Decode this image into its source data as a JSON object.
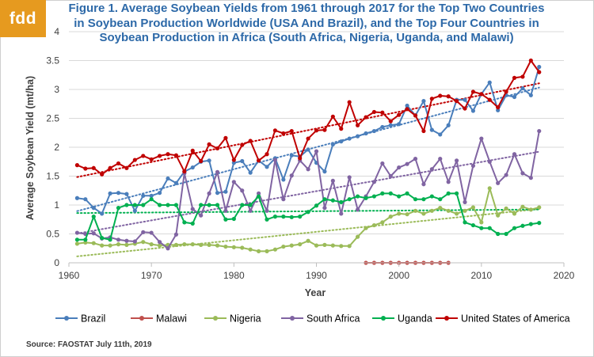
{
  "logo": {
    "text": "fdd"
  },
  "title": "Figure 1.  Average Soybean Yields from 1961 through 2017 for the Top Two Countries in Soybean Production Worldwide (USA And Brazil), and the Top Four Countries in Soybean Production in Africa (South Africa, Nigeria, Uganda, and Malawi)",
  "source": "Source: FAOSTAT July 11th, 2019",
  "chart_data": {
    "type": "line",
    "title": "Figure 1.  Average Soybean Yields from 1961 through 2017 for the Top Two Countries in Soybean Production Worldwide (USA And Brazil), and the Top Four Countries in Soybean Production in Africa (South Africa, Nigeria, Uganda, and Malawi)",
    "xlabel": "Year",
    "ylabel": "Average Soybean Yield (mt/ha)",
    "xlim": [
      1960,
      2020
    ],
    "ylim": [
      0,
      4
    ],
    "xticks": [
      "1960",
      "1970",
      "1980",
      "1990",
      "2000",
      "2010",
      "2020"
    ],
    "yticks": [
      "0",
      "0.5",
      "1",
      "1.5",
      "2",
      "2.5",
      "3",
      "3.5",
      "4"
    ],
    "grid": "horizontal",
    "legend_position": "bottom",
    "trendlines": "dotted linear trendline per series",
    "series": [
      {
        "name": "Brazil",
        "color": "#4a7ebb",
        "start_year": 1961,
        "values": [
          1.12,
          1.1,
          0.95,
          0.85,
          1.2,
          1.21,
          1.19,
          0.9,
          1.16,
          1.16,
          1.21,
          1.46,
          1.38,
          1.58,
          1.65,
          1.75,
          1.77,
          1.21,
          1.23,
          1.73,
          1.76,
          1.56,
          1.77,
          1.66,
          1.81,
          1.44,
          1.86,
          1.84,
          1.96,
          1.73,
          1.58,
          2.05,
          2.1,
          2.15,
          2.19,
          2.24,
          2.28,
          2.35,
          2.38,
          2.4,
          2.72,
          2.55,
          2.8,
          2.3,
          2.22,
          2.38,
          2.82,
          2.82,
          2.63,
          2.92,
          3.12,
          2.64,
          2.9,
          2.87,
          3.02,
          2.9,
          3.39
        ]
      },
      {
        "name": "Malawi",
        "color": "#c0504d",
        "start_year": 1996,
        "values": [
          0.0,
          0.0,
          0.0,
          0.0,
          0.0,
          0.0,
          0.0,
          0.0,
          0.0,
          0.0,
          0.0
        ]
      },
      {
        "name": "Nigeria",
        "color": "#9bbb59",
        "start_year": 1961,
        "values": [
          0.33,
          0.35,
          0.34,
          0.3,
          0.3,
          0.32,
          0.31,
          0.33,
          0.36,
          0.32,
          0.3,
          0.31,
          0.31,
          0.32,
          0.32,
          0.31,
          0.31,
          0.3,
          0.28,
          0.27,
          0.26,
          0.23,
          0.2,
          0.2,
          0.23,
          0.28,
          0.3,
          0.32,
          0.38,
          0.3,
          0.31,
          0.3,
          0.29,
          0.29,
          0.45,
          0.6,
          0.65,
          0.7,
          0.8,
          0.85,
          0.84,
          0.9,
          0.85,
          0.9,
          0.95,
          0.9,
          0.85,
          0.9,
          0.96,
          0.7,
          1.29,
          0.82,
          0.94,
          0.85,
          0.97,
          0.92,
          0.96
        ]
      },
      {
        "name": "South Africa",
        "color": "#8064a2",
        "start_year": 1961,
        "values": [
          0.52,
          0.5,
          0.51,
          0.42,
          0.44,
          0.4,
          0.38,
          0.37,
          0.53,
          0.52,
          0.36,
          0.25,
          0.49,
          1.55,
          0.93,
          0.82,
          1.2,
          1.57,
          0.9,
          1.4,
          1.25,
          0.9,
          1.2,
          0.9,
          1.78,
          1.1,
          1.51,
          1.77,
          1.62,
          1.93,
          0.95,
          1.42,
          0.85,
          1.48,
          0.92,
          1.15,
          1.4,
          1.72,
          1.5,
          1.65,
          1.71,
          1.8,
          1.36,
          1.62,
          1.8,
          1.4,
          1.77,
          1.05,
          1.68,
          2.15,
          1.75,
          1.38,
          1.52,
          1.88,
          1.55,
          1.47,
          2.28
        ]
      },
      {
        "name": "Uganda",
        "color": "#00b050",
        "start_year": 1961,
        "values": [
          0.4,
          0.4,
          0.8,
          0.43,
          0.4,
          0.95,
          1.0,
          1.0,
          1.0,
          1.1,
          1.0,
          1.0,
          1.0,
          0.7,
          0.68,
          1.0,
          1.0,
          1.0,
          0.75,
          0.76,
          1.0,
          1.0,
          1.15,
          0.75,
          0.8,
          0.8,
          0.79,
          0.8,
          0.88,
          0.99,
          1.1,
          1.08,
          1.05,
          1.1,
          1.15,
          1.12,
          1.15,
          1.2,
          1.2,
          1.15,
          1.2,
          1.1,
          1.1,
          1.15,
          1.1,
          1.2,
          1.2,
          0.7,
          0.65,
          0.6,
          0.6,
          0.5,
          0.5,
          0.6,
          0.64,
          0.67,
          0.69
        ]
      },
      {
        "name": "United States of America",
        "color": "#c00000",
        "start_year": 1961,
        "values": [
          1.69,
          1.63,
          1.64,
          1.53,
          1.64,
          1.72,
          1.64,
          1.78,
          1.85,
          1.79,
          1.85,
          1.88,
          1.86,
          1.58,
          1.94,
          1.76,
          2.05,
          1.98,
          2.16,
          1.78,
          2.04,
          2.11,
          1.77,
          1.88,
          2.29,
          2.24,
          2.28,
          1.81,
          2.15,
          2.29,
          2.3,
          2.53,
          2.32,
          2.78,
          2.38,
          2.52,
          2.61,
          2.6,
          2.45,
          2.56,
          2.66,
          2.55,
          2.28,
          2.84,
          2.89,
          2.88,
          2.8,
          2.67,
          2.96,
          2.92,
          2.82,
          2.69,
          2.96,
          3.2,
          3.22,
          3.5,
          3.3
        ]
      }
    ]
  }
}
